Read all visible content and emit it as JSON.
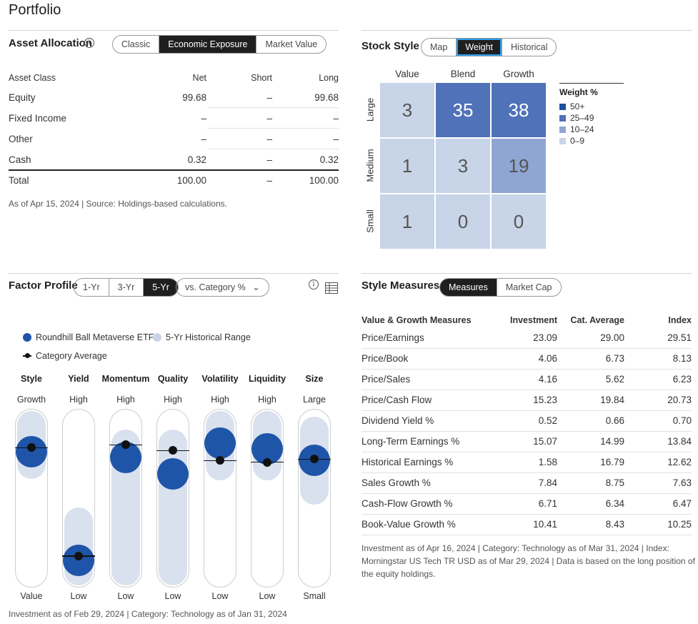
{
  "page_title": "Portfolio",
  "asset_allocation": {
    "title": "Asset Allocation",
    "tabs": [
      "Classic",
      "Economic Exposure",
      "Market Value"
    ],
    "active_tab": "Economic Exposure",
    "headers": [
      "Asset Class",
      "Net",
      "Short",
      "Long"
    ],
    "rows": [
      {
        "label": "Equity",
        "net": "99.68",
        "short": "–",
        "long": "99.68"
      },
      {
        "label": "Fixed Income",
        "net": "–",
        "short": "–",
        "long": "–"
      },
      {
        "label": "Other",
        "net": "–",
        "short": "–",
        "long": "–"
      },
      {
        "label": "Cash",
        "net": "0.32",
        "short": "–",
        "long": "0.32"
      }
    ],
    "total": {
      "label": "Total",
      "net": "100.00",
      "short": "–",
      "long": "100.00"
    },
    "note": "As of Apr 15, 2024 | Source: Holdings-based calculations."
  },
  "stock_style": {
    "title": "Stock Style",
    "tabs": [
      "Map",
      "Weight",
      "Historical"
    ],
    "active_tab": "Weight",
    "columns": [
      "Value",
      "Blend",
      "Growth"
    ],
    "rows": [
      "Large",
      "Medium",
      "Small"
    ],
    "values": [
      [
        "3",
        "35",
        "38"
      ],
      [
        "1",
        "3",
        "19"
      ],
      [
        "1",
        "0",
        "0"
      ]
    ],
    "legend_title": "Weight %",
    "legend": [
      {
        "label": "50+",
        "color": "#1f4f9e"
      },
      {
        "label": "25–49",
        "color": "#4f72b8"
      },
      {
        "label": "10–24",
        "color": "#8ea6d1"
      },
      {
        "label": "0–9",
        "color": "#c8d4e7"
      }
    ]
  },
  "factor_profile": {
    "title": "Factor Profile",
    "tabs": [
      "1-Yr",
      "3-Yr",
      "5-Yr"
    ],
    "active_tab": "5-Yr",
    "dropdown": "vs. Category %",
    "legend": {
      "investment": "Roundhill Ball Metaverse ETF",
      "range": "5-Yr Historical Range",
      "category": "Category Average"
    },
    "factors": [
      {
        "name": "Style",
        "top": "Growth",
        "bottom": "Value",
        "investment": 0.82,
        "category": 0.85,
        "range": [
          0.75,
          1.0
        ]
      },
      {
        "name": "Yield",
        "top": "High",
        "bottom": "Low",
        "investment": 0.07,
        "category": 0.1,
        "range": [
          0.0,
          0.33
        ]
      },
      {
        "name": "Momentum",
        "top": "High",
        "bottom": "Low",
        "investment": 0.78,
        "category": 0.87,
        "range": [
          0.0,
          0.87
        ]
      },
      {
        "name": "Quality",
        "top": "High",
        "bottom": "Low",
        "investment": 0.67,
        "category": 0.83,
        "range": [
          0.0,
          0.87
        ]
      },
      {
        "name": "Volatility",
        "top": "High",
        "bottom": "Low",
        "investment": 0.88,
        "category": 0.76,
        "range": [
          0.74,
          1.0
        ]
      },
      {
        "name": "Liquidity",
        "top": "High",
        "bottom": "Low",
        "investment": 0.84,
        "category": 0.75,
        "range": [
          0.74,
          1.0
        ]
      },
      {
        "name": "Size",
        "top": "Large",
        "bottom": "Small",
        "investment": 0.76,
        "category": 0.77,
        "range": [
          0.57,
          0.96
        ]
      }
    ],
    "note": "Investment as of Feb 29, 2024 | Category: Technology as of Jan 31, 2024",
    "colors": {
      "investment": "#1f55a9",
      "range": "#d9e1ee",
      "category": "#111111"
    }
  },
  "style_measures": {
    "title": "Style Measures",
    "tabs": [
      "Measures",
      "Market Cap"
    ],
    "active_tab": "Measures",
    "headers": [
      "Value & Growth Measures",
      "Investment",
      "Cat. Average",
      "Index"
    ],
    "rows": [
      {
        "label": "Price/Earnings",
        "inv": "23.09",
        "cat": "29.00",
        "idx": "29.51"
      },
      {
        "label": "Price/Book",
        "inv": "4.06",
        "cat": "6.73",
        "idx": "8.13"
      },
      {
        "label": "Price/Sales",
        "inv": "4.16",
        "cat": "5.62",
        "idx": "6.23"
      },
      {
        "label": "Price/Cash Flow",
        "inv": "15.23",
        "cat": "19.84",
        "idx": "20.73"
      },
      {
        "label": "Dividend Yield %",
        "inv": "0.52",
        "cat": "0.66",
        "idx": "0.70"
      },
      {
        "label": "Long-Term Earnings %",
        "inv": "15.07",
        "cat": "14.99",
        "idx": "13.84"
      },
      {
        "label": "Historical Earnings %",
        "inv": "1.58",
        "cat": "16.79",
        "idx": "12.62"
      },
      {
        "label": "Sales Growth %",
        "inv": "7.84",
        "cat": "8.75",
        "idx": "7.63"
      },
      {
        "label": "Cash-Flow Growth %",
        "inv": "6.71",
        "cat": "6.34",
        "idx": "6.47"
      },
      {
        "label": "Book-Value Growth %",
        "inv": "10.41",
        "cat": "8.43",
        "idx": "10.25"
      }
    ],
    "note_lines": [
      "Investment as of Apr 16, 2024 | Category: Technology as of Mar 31, 2024 | Index:",
      "Morningstar US Tech TR USD as of Mar 29, 2024 | Data is based on the long position of",
      "the equity holdings."
    ]
  }
}
